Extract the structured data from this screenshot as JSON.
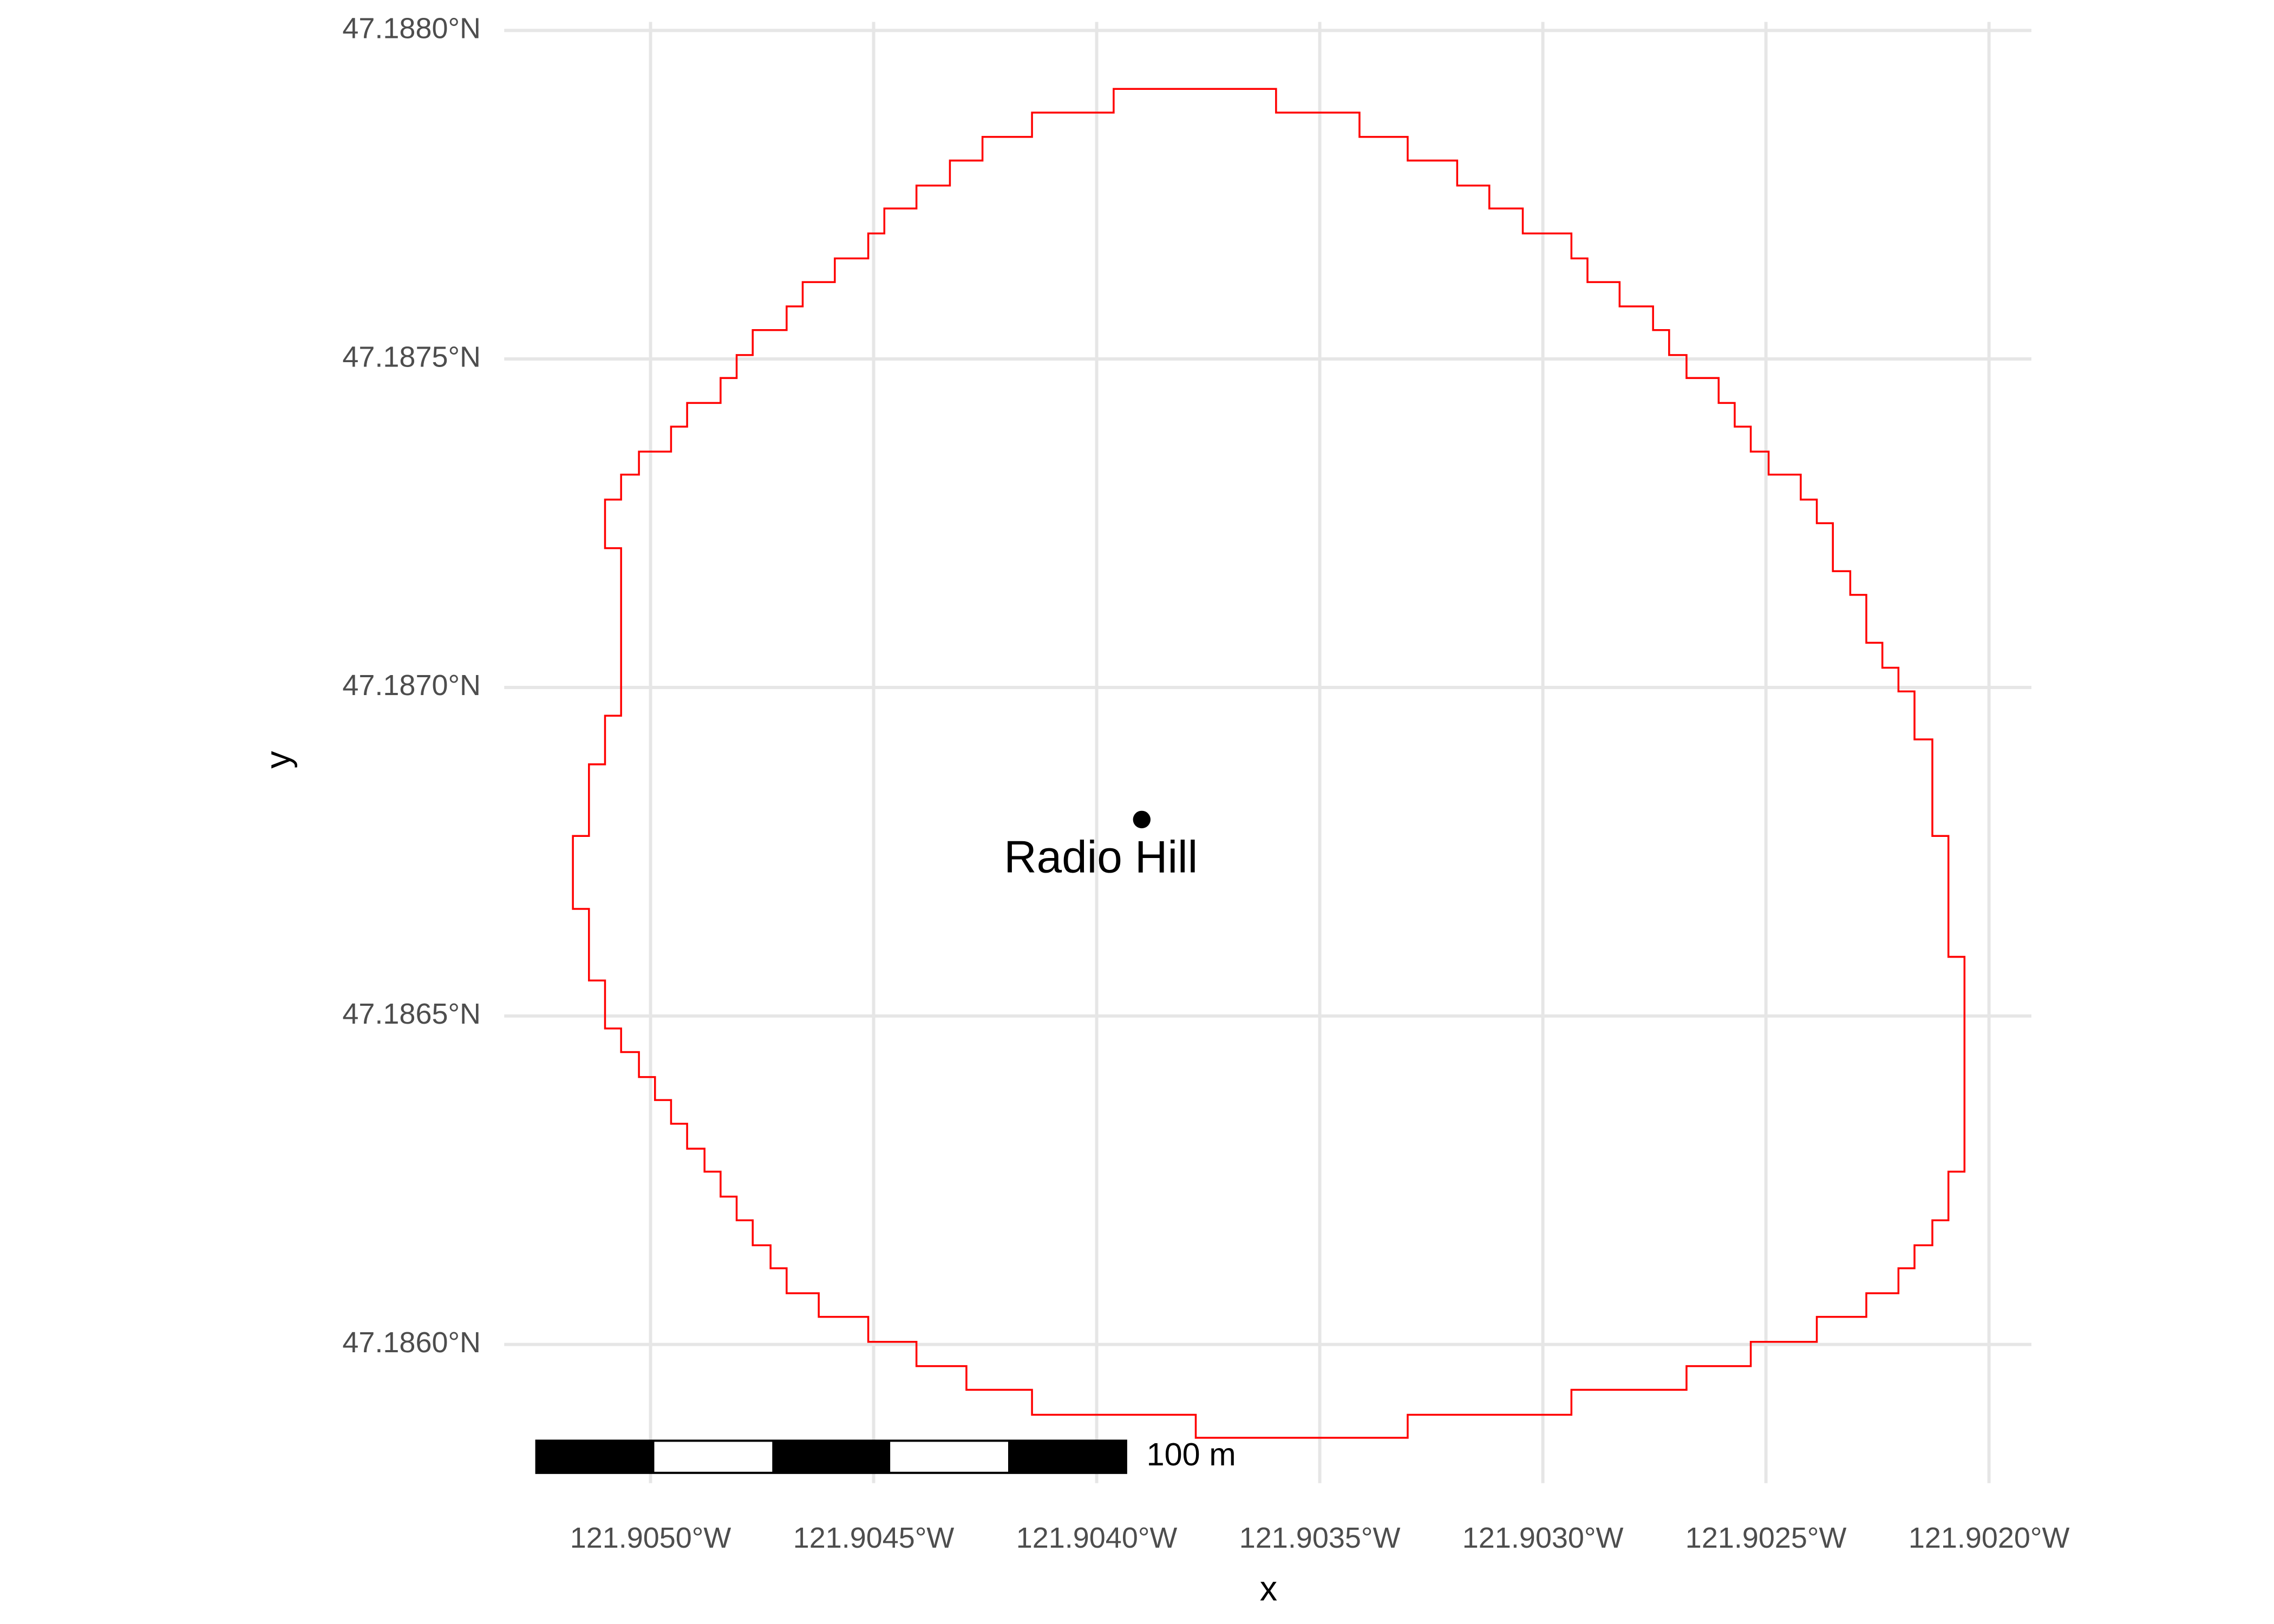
{
  "chart_data": {
    "type": "map",
    "x_label": "x",
    "y_label": "y",
    "grid": true,
    "xlim": [
      -121.905328,
      -121.901905
    ],
    "ylim": [
      47.185789,
      47.188013
    ],
    "xticks": [
      {
        "value": -121.905,
        "label": "121.9050°W"
      },
      {
        "value": -121.9045,
        "label": "121.9045°W"
      },
      {
        "value": -121.904,
        "label": "121.9040°W"
      },
      {
        "value": -121.9035,
        "label": "121.9035°W"
      },
      {
        "value": -121.903,
        "label": "121.9030°W"
      },
      {
        "value": -121.9025,
        "label": "121.9025°W"
      },
      {
        "value": -121.902,
        "label": "121.9020°W"
      }
    ],
    "yticks": [
      {
        "value": 47.186,
        "label": "47.1860°N"
      },
      {
        "value": 47.1865,
        "label": "47.1865°N"
      },
      {
        "value": 47.187,
        "label": "47.1870°N"
      },
      {
        "value": 47.1875,
        "label": "47.1875°N"
      },
      {
        "value": 47.188,
        "label": "47.1880°N"
      }
    ],
    "boundary": {
      "color": "#ff0000",
      "x": [
        -121.903962,
        -121.903598,
        -121.903598,
        -121.903411,
        -121.903411,
        -121.903303,
        -121.903303,
        -121.903192,
        -121.903192,
        -121.90312,
        -121.90312,
        -121.903045,
        -121.903045,
        -121.902936,
        -121.902936,
        -121.9029,
        -121.9029,
        -121.902828,
        -121.902828,
        -121.902753,
        -121.902753,
        -121.902717,
        -121.902717,
        -121.902678,
        -121.902678,
        -121.902606,
        -121.902606,
        -121.90257,
        -121.90257,
        -121.902534,
        -121.902534,
        -121.902494,
        -121.902494,
        -121.902422,
        -121.902422,
        -121.902386,
        -121.902386,
        -121.90235,
        -121.90235,
        -121.902311,
        -121.902311,
        -121.902275,
        -121.902275,
        -121.902239,
        -121.902239,
        -121.902203,
        -121.902203,
        -121.902167,
        -121.902167,
        -121.902127,
        -121.902127,
        -121.902091,
        -121.902091,
        -121.902055,
        -121.902055,
        -121.902091,
        -121.902091,
        -121.902127,
        -121.902127,
        -121.902167,
        -121.902167,
        -121.902203,
        -121.902203,
        -121.902275,
        -121.902275,
        -121.902386,
        -121.902386,
        -121.902534,
        -121.902534,
        -121.902678,
        -121.902678,
        -121.902936,
        -121.902936,
        -121.903303,
        -121.903303,
        -121.903778,
        -121.903778,
        -121.904145,
        -121.904145,
        -121.904292,
        -121.904292,
        -121.904404,
        -121.904404,
        -121.904512,
        -121.904512,
        -121.904623,
        -121.904623,
        -121.904695,
        -121.904695,
        -121.904731,
        -121.904731,
        -121.904771,
        -121.904771,
        -121.904807,
        -121.904807,
        -121.904843,
        -121.904843,
        -121.904879,
        -121.904879,
        -121.904918,
        -121.904918,
        -121.904954,
        -121.904954,
        -121.90499,
        -121.90499,
        -121.905026,
        -121.905026,
        -121.905066,
        -121.905066,
        -121.905102,
        -121.905102,
        -121.905138,
        -121.905138,
        -121.905174,
        -121.905174,
        -121.905138,
        -121.905138,
        -121.905102,
        -121.905102,
        -121.905066,
        -121.905066,
        -121.905102,
        -121.905102,
        -121.905066,
        -121.905066,
        -121.905026,
        -121.905026,
        -121.904954,
        -121.904954,
        -121.904918,
        -121.904918,
        -121.904843,
        -121.904843,
        -121.904807,
        -121.904807,
        -121.904771,
        -121.904771,
        -121.904695,
        -121.904695,
        -121.904659,
        -121.904659,
        -121.904587,
        -121.904587,
        -121.904512,
        -121.904512,
        -121.904476,
        -121.904476,
        -121.904404,
        -121.904404,
        -121.904329,
        -121.904329,
        -121.904256,
        -121.904256,
        -121.904145,
        -121.904145,
        -121.903962
      ],
      "y": [
        47.187911,
        47.187911,
        47.187875,
        47.187875,
        47.187838,
        47.187838,
        47.187802,
        47.187802,
        47.187764,
        47.187764,
        47.187729,
        47.187729,
        47.187691,
        47.187691,
        47.187653,
        47.187653,
        47.187617,
        47.187617,
        47.18758,
        47.18758,
        47.187544,
        47.187544,
        47.187506,
        47.187506,
        47.187471,
        47.187471,
        47.187433,
        47.187433,
        47.187397,
        47.187397,
        47.187359,
        47.187359,
        47.187324,
        47.187324,
        47.187286,
        47.187286,
        47.18725,
        47.18725,
        47.187177,
        47.187177,
        47.187141,
        47.187141,
        47.187068,
        47.187068,
        47.18703,
        47.18703,
        47.186994,
        47.186994,
        47.186921,
        47.186921,
        47.186774,
        47.186774,
        47.18659,
        47.18659,
        47.186263,
        47.186263,
        47.186189,
        47.186189,
        47.186151,
        47.186151,
        47.186116,
        47.186116,
        47.186078,
        47.186078,
        47.186042,
        47.186042,
        47.186004,
        47.186004,
        47.185967,
        47.185967,
        47.185931,
        47.185931,
        47.185893,
        47.185893,
        47.185858,
        47.185858,
        47.185893,
        47.185893,
        47.185931,
        47.185931,
        47.185967,
        47.185967,
        47.186004,
        47.186004,
        47.186042,
        47.186042,
        47.186078,
        47.186078,
        47.186116,
        47.186116,
        47.186151,
        47.186151,
        47.186189,
        47.186189,
        47.186225,
        47.186225,
        47.186263,
        47.186263,
        47.186298,
        47.186298,
        47.186336,
        47.186336,
        47.186372,
        47.186372,
        47.186407,
        47.186407,
        47.186445,
        47.186445,
        47.186481,
        47.186481,
        47.186554,
        47.186554,
        47.186663,
        47.186663,
        47.186774,
        47.186774,
        47.186883,
        47.186883,
        47.186957,
        47.186957,
        47.187212,
        47.187212,
        47.187286,
        47.187286,
        47.187324,
        47.187324,
        47.187359,
        47.187359,
        47.187397,
        47.187397,
        47.187433,
        47.187433,
        47.187471,
        47.187471,
        47.187506,
        47.187506,
        47.187544,
        47.187544,
        47.18758,
        47.18758,
        47.187617,
        47.187617,
        47.187653,
        47.187653,
        47.187691,
        47.187691,
        47.187729,
        47.187729,
        47.187764,
        47.187764,
        47.187802,
        47.187802,
        47.187838,
        47.187838,
        47.187875,
        47.187875
      ]
    },
    "points": [
      {
        "x": -121.903899,
        "y": 47.186799,
        "label": "Radio Hill",
        "color": "#000000"
      }
    ],
    "scale_bar": {
      "length": 100,
      "label": "100 m"
    }
  }
}
